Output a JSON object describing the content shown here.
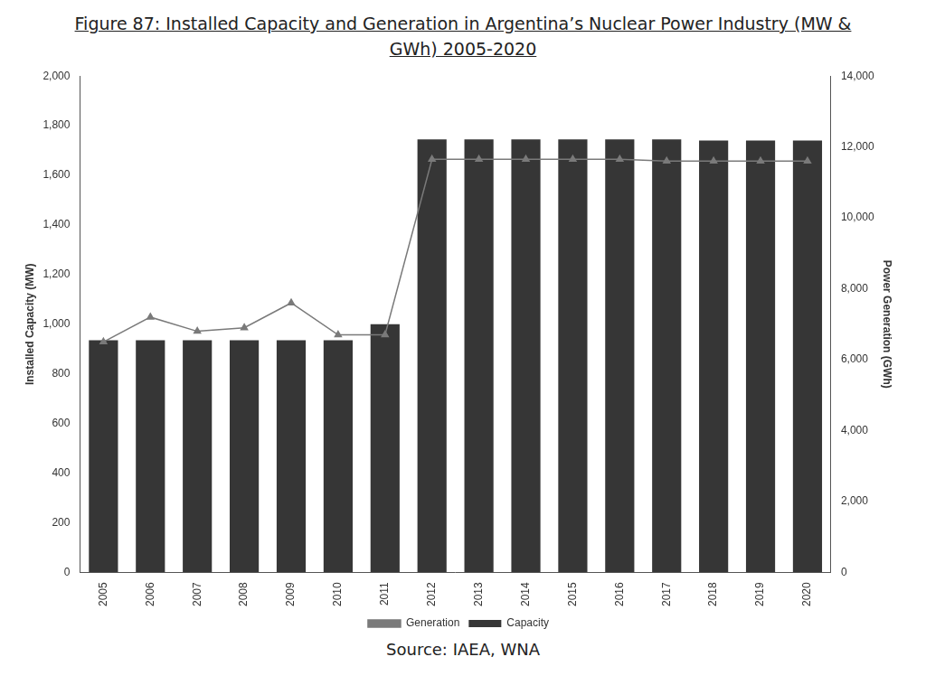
{
  "chart_data": {
    "type": "bar",
    "title": "Figure 87: Installed Capacity and Generation in Argentina’s Nuclear Power Industry (MW & GWh) 2005-2020",
    "source": "Source: IAEA, WNA",
    "y_label": "Installed Capacity (MW)",
    "y2_label": "Power Generation (GWh)",
    "categories": [
      "2005",
      "2006",
      "2007",
      "2008",
      "2009",
      "2010",
      "2011",
      "2012",
      "2013",
      "2014",
      "2015",
      "2016",
      "2017",
      "2018",
      "2019",
      "2020"
    ],
    "series": [
      {
        "name": "Capacity",
        "type": "bar",
        "color": "#363636",
        "values": [
          935,
          935,
          935,
          935,
          935,
          935,
          1000,
          1745,
          1745,
          1745,
          1745,
          1745,
          1745,
          1740,
          1740,
          1740
        ]
      },
      {
        "name": "Generation",
        "type": "line",
        "color": "#7a7a7a",
        "marker": "triangle",
        "line_style": "solid",
        "axis": "y2",
        "values": [
          6500,
          7200,
          6800,
          6900,
          7600,
          6700,
          6700,
          11650,
          11650,
          11650,
          11650,
          11650,
          11600,
          11600,
          11600,
          11600
        ]
      }
    ],
    "ylim": [
      0,
      2000
    ],
    "yticks": [
      0,
      200,
      400,
      600,
      800,
      {
        "value": 1000,
        "label": "1,000"
      },
      {
        "value": 1200,
        "label": "1,200"
      },
      {
        "value": 1400,
        "label": "1,400"
      },
      {
        "value": 1600,
        "label": "1,600"
      },
      {
        "value": 1800,
        "label": "1,800"
      },
      {
        "value": 2000,
        "label": "2,000"
      }
    ],
    "y2lim": [
      0,
      14000
    ],
    "y2ticks": [
      0,
      {
        "value": 2000,
        "label": "2,000"
      },
      {
        "value": 4000,
        "label": "4,000"
      },
      {
        "value": 6000,
        "label": "6,000"
      },
      {
        "value": 8000,
        "label": "8,000"
      },
      {
        "value": 10000,
        "label": "10,000"
      },
      {
        "value": 12000,
        "label": "12,000"
      },
      {
        "value": 14000,
        "label": "14,000"
      }
    ],
    "grid": false,
    "legend": "bottom"
  }
}
